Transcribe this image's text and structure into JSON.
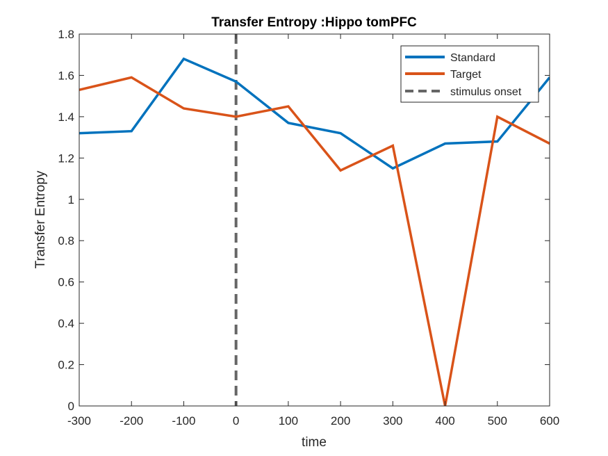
{
  "chart_data": {
    "type": "line",
    "title": "Transfer Entropy :Hippo tomPFC",
    "xlabel": "time",
    "ylabel": "Transfer Entropy",
    "xlim": [
      -300,
      600
    ],
    "ylim": [
      0,
      1.8
    ],
    "xticks": [
      -300,
      -200,
      -100,
      0,
      100,
      200,
      300,
      400,
      500,
      600
    ],
    "xtick_labels": [
      "-300",
      "-200",
      "-100",
      "0",
      "100",
      "200",
      "300",
      "400",
      "500",
      "600"
    ],
    "yticks": [
      0,
      0.2,
      0.4,
      0.6,
      0.8,
      1,
      1.2,
      1.4,
      1.6,
      1.8
    ],
    "ytick_labels": [
      "0",
      "0.2",
      "0.4",
      "0.6",
      "0.8",
      "1",
      "1.2",
      "1.4",
      "1.6",
      "1.8"
    ],
    "grid": false,
    "legend_position": "top-right",
    "x": [
      -300,
      -200,
      -100,
      0,
      100,
      200,
      300,
      400,
      500,
      600
    ],
    "series": [
      {
        "name": "Standard",
        "color": "#0072BD",
        "values": [
          1.32,
          1.33,
          1.68,
          1.57,
          1.37,
          1.32,
          1.15,
          1.27,
          1.28,
          1.59
        ]
      },
      {
        "name": "Target",
        "color": "#D95319",
        "values": [
          1.53,
          1.59,
          1.44,
          1.4,
          1.45,
          1.14,
          1.26,
          0.0,
          1.4,
          1.27
        ]
      }
    ],
    "vline": {
      "name": "stimulus onset",
      "x": 0,
      "color": "#666666",
      "style": "dashed"
    }
  }
}
